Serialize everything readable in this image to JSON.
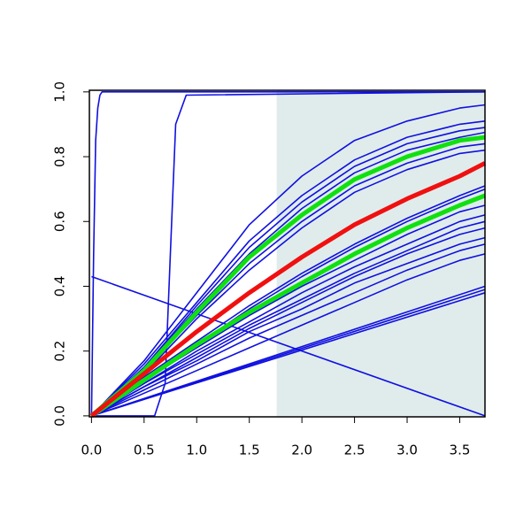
{
  "chart_data": {
    "type": "line",
    "x": [
      0,
      0.5,
      1,
      1.5,
      2,
      2.5,
      3,
      3.5,
      3.74
    ],
    "xlim": [
      -0.02,
      3.74
    ],
    "ylim": [
      -0.003,
      1.005
    ],
    "xticks": [
      {
        "value": 0,
        "label": "0.0"
      },
      0.5,
      {
        "value": 1,
        "label": "1.0"
      },
      1.5,
      {
        "value": 2,
        "label": "2.0"
      },
      2.5,
      {
        "value": 3,
        "label": "3.0"
      },
      3.5
    ],
    "yticks": [
      {
        "value": 0,
        "label": "0.0"
      },
      0.2,
      0.4,
      0.6,
      0.8,
      {
        "value": 1,
        "label": "1.0"
      }
    ],
    "shade": {
      "from": 1.76,
      "color": "#e0ecec"
    },
    "color": "#1010e0",
    "series": [
      {
        "color": "#1010e0",
        "values": [
          0,
          0.17,
          0.38,
          0.59,
          0.74,
          0.85,
          0.91,
          0.95,
          0.96
        ]
      },
      {
        "color": "#1010e0",
        "values": [
          0,
          0.16,
          0.35,
          0.54,
          0.68,
          0.79,
          0.86,
          0.9,
          0.91
        ]
      },
      {
        "color": "#1010e0",
        "values": [
          0,
          0.15,
          0.34,
          0.52,
          0.66,
          0.77,
          0.84,
          0.88,
          0.89
        ]
      },
      {
        "color": "#1010e0",
        "values": [
          0,
          0.15,
          0.33,
          0.5,
          0.64,
          0.75,
          0.82,
          0.86,
          0.875
        ]
      },
      {
        "color": "#1010e0",
        "values": [
          0,
          0.14,
          0.31,
          0.47,
          0.6,
          0.71,
          0.78,
          0.83,
          0.84
        ]
      },
      {
        "color": "#1010e0",
        "values": [
          0,
          0.13,
          0.3,
          0.45,
          0.58,
          0.69,
          0.76,
          0.81,
          0.82
        ]
      },
      {
        "color": "#1010e0",
        "values": [
          0,
          0.12,
          0.23,
          0.34,
          0.44,
          0.53,
          0.61,
          0.68,
          0.71
        ]
      },
      {
        "color": "#1010e0",
        "values": [
          0,
          0.11,
          0.22,
          0.33,
          0.43,
          0.52,
          0.6,
          0.67,
          0.7
        ]
      },
      {
        "color": "#1010e0",
        "values": [
          0,
          0.11,
          0.21,
          0.31,
          0.4,
          0.48,
          0.56,
          0.63,
          0.65
        ]
      },
      {
        "color": "#1010e0",
        "values": [
          0,
          0.1,
          0.2,
          0.29,
          0.38,
          0.46,
          0.53,
          0.6,
          0.62
        ]
      },
      {
        "color": "#1010e0",
        "values": [
          0,
          0.1,
          0.19,
          0.28,
          0.36,
          0.44,
          0.51,
          0.58,
          0.6
        ]
      },
      {
        "color": "#1010e0",
        "values": [
          0,
          0.09,
          0.18,
          0.27,
          0.35,
          0.43,
          0.5,
          0.56,
          0.58
        ]
      },
      {
        "color": "#1010e0",
        "values": [
          0,
          0.09,
          0.17,
          0.26,
          0.33,
          0.41,
          0.47,
          0.53,
          0.55
        ]
      },
      {
        "color": "#1010e0",
        "values": [
          0,
          0.08,
          0.16,
          0.24,
          0.31,
          0.38,
          0.45,
          0.51,
          0.53
        ]
      },
      {
        "color": "#1010e0",
        "values": [
          0,
          0.07,
          0.14,
          0.21,
          0.28,
          0.35,
          0.42,
          0.48,
          0.5
        ]
      },
      {
        "color": "#1010e0",
        "x": [
          0,
          3.74
        ],
        "values": [
          0,
          0.4
        ]
      },
      {
        "color": "#1010e0",
        "x": [
          0,
          3.74
        ],
        "values": [
          0,
          0.39
        ]
      },
      {
        "color": "#1010e0",
        "x": [
          0,
          3.74
        ],
        "values": [
          0,
          0.38
        ]
      },
      {
        "color": "#1010e0",
        "x": [
          0,
          3.74
        ],
        "values": [
          0.43,
          0
        ]
      },
      {
        "color": "#1010e0",
        "x": [
          0,
          0.02,
          0.04,
          0.06,
          0.08,
          0.1,
          3.74
        ],
        "values": [
          0,
          0.5,
          0.85,
          0.95,
          0.99,
          1,
          1
        ]
      },
      {
        "color": "#1010e0",
        "x": [
          0,
          0.6,
          0.7,
          0.75,
          0.8,
          0.9,
          3.74
        ],
        "values": [
          0,
          0,
          0.1,
          0.5,
          0.9,
          0.99,
          1
        ]
      },
      {
        "color": "#10e010",
        "values": [
          0,
          0.14,
          0.32,
          0.49,
          0.62,
          0.73,
          0.8,
          0.85,
          0.86
        ]
      },
      {
        "color": "#10e010",
        "values": [
          0,
          0.11,
          0.22,
          0.32,
          0.41,
          0.5,
          0.58,
          0.65,
          0.68
        ]
      },
      {
        "color": "#f01010",
        "values": [
          0,
          0.13,
          0.26,
          0.38,
          0.49,
          0.59,
          0.67,
          0.74,
          0.78
        ]
      }
    ]
  }
}
